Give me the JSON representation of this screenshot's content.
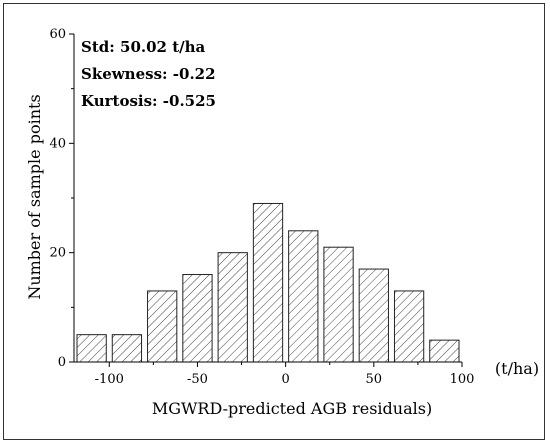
{
  "chart_data": {
    "type": "bar",
    "title": "",
    "xlabel": "MGWRD-predicted AGB residuals)",
    "xunit": "(t/ha)",
    "ylabel": "Number of sample points",
    "xlim": [
      -120,
      100
    ],
    "ylim": [
      0,
      60
    ],
    "bin_width": 20,
    "categories": [
      -110,
      -90,
      -70,
      -50,
      -30,
      -10,
      10,
      30,
      50,
      70,
      90
    ],
    "values": [
      5,
      5,
      13,
      16,
      20,
      29,
      24,
      21,
      17,
      13,
      4
    ],
    "x_ticks": [
      -100,
      -50,
      0,
      50,
      100
    ],
    "x_tick_labels": [
      "-100",
      "-50",
      "0",
      "50",
      "100"
    ],
    "y_ticks": [
      0,
      20,
      40,
      60
    ],
    "y_tick_labels": [
      "0",
      "20",
      "40",
      "60"
    ],
    "bar_fill": "hatched",
    "grid": false,
    "annotations": [
      "Std: 50.02 t/ha",
      "Skewness: -0.22",
      "Kurtosis: -0.525"
    ]
  }
}
